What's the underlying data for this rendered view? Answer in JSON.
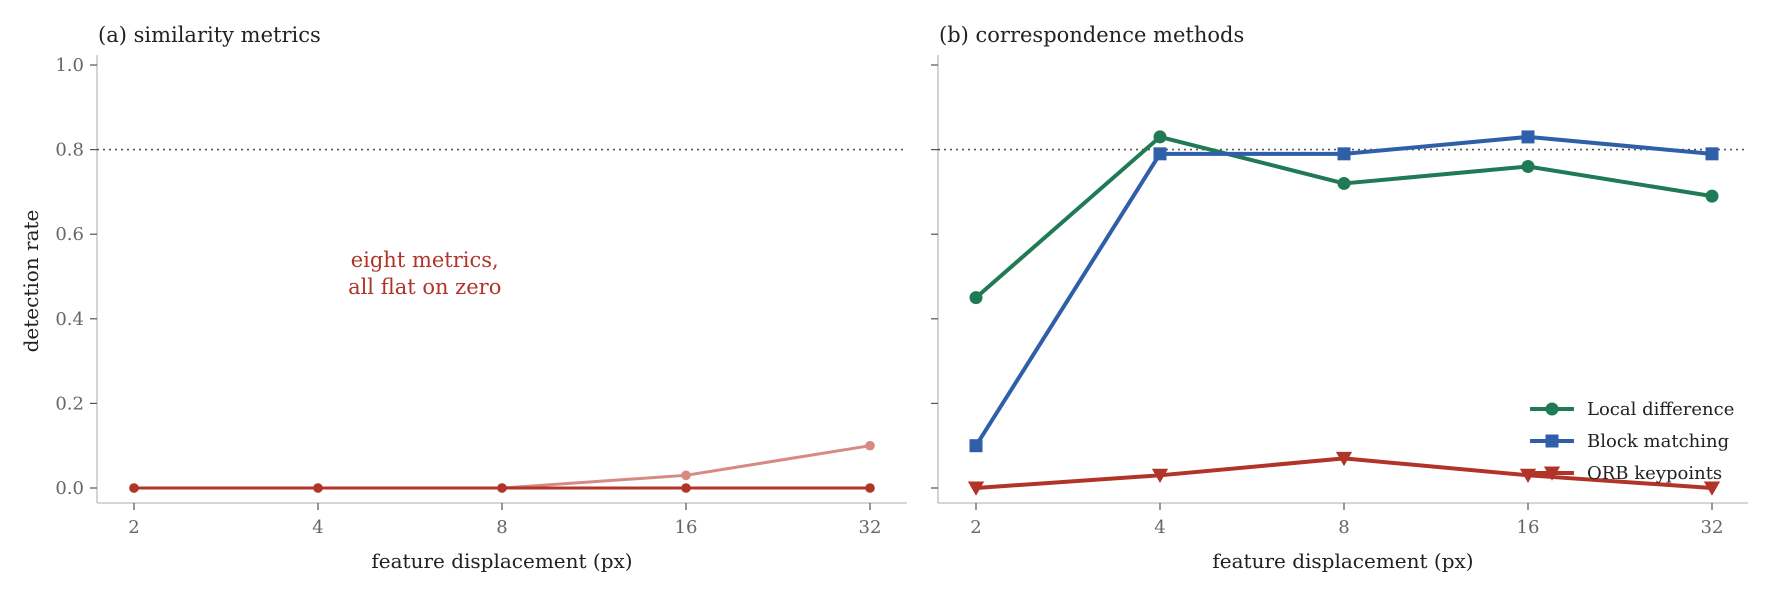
{
  "chart_data": [
    {
      "type": "line",
      "title": "(a) similarity metrics",
      "xlabel": "feature displacement (px)",
      "ylabel": "detection rate",
      "x": [
        2,
        4,
        8,
        16,
        32
      ],
      "x_scale": "log2",
      "ylim": [
        0,
        1.0
      ],
      "yticks": [
        "0.0",
        "0.2",
        "0.4",
        "0.6",
        "0.8",
        "1.0"
      ],
      "xticks": [
        "2",
        "4",
        "8",
        "16",
        "32"
      ],
      "reference_line": 0.8,
      "grid": false,
      "annotation": [
        "eight metrics,",
        "all flat on zero"
      ],
      "series": [
        {
          "values": [
            0,
            0,
            0,
            0.03,
            0.1
          ],
          "color": "#d68a82",
          "marker": "circle"
        },
        {
          "values": [
            0,
            0,
            0,
            0,
            0
          ],
          "color": "#b03428",
          "marker": "circle"
        }
      ]
    },
    {
      "type": "line",
      "title": "(b) correspondence methods",
      "xlabel": "feature displacement (px)",
      "x": [
        2,
        4,
        8,
        16,
        32
      ],
      "x_scale": "log2",
      "ylim": [
        0,
        1.0
      ],
      "xticks": [
        "2",
        "4",
        "8",
        "16",
        "32"
      ],
      "reference_line": 0.8,
      "grid": false,
      "legend_position": "lower-right",
      "series": [
        {
          "name": "Local difference",
          "values": [
            0.45,
            0.83,
            0.72,
            0.76,
            0.69
          ],
          "color": "#1f7a55",
          "marker": "circle"
        },
        {
          "name": "Block matching",
          "values": [
            0.1,
            0.79,
            0.79,
            0.83,
            0.79
          ],
          "color": "#2f5fa8",
          "marker": "square"
        },
        {
          "name": "ORB keypoints",
          "values": [
            0.0,
            0.03,
            0.07,
            0.03,
            0.0
          ],
          "color": "#b03428",
          "marker": "triangle-down"
        }
      ]
    }
  ]
}
